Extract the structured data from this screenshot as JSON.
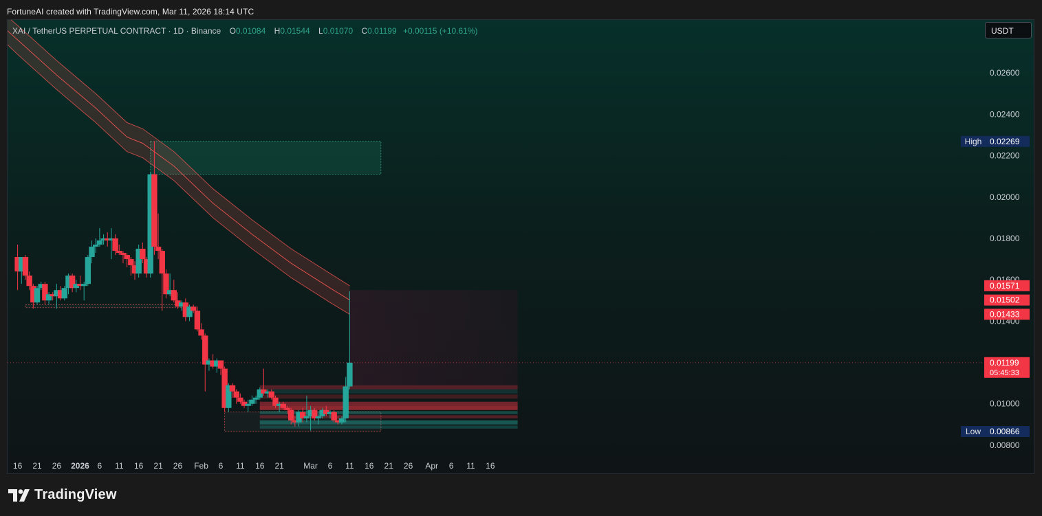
{
  "header": {
    "attribution": "FortuneAI created with TradingView.com, Mar 11, 2026 18:14 UTC"
  },
  "legend": {
    "symbol": "XAI / TetherUS PERPETUAL CONTRACT · 1D · Binance",
    "open_label": "O",
    "open": "0.01084",
    "high_label": "H",
    "high": "0.01544",
    "low_label": "L",
    "low": "0.01070",
    "close_label": "C",
    "close": "0.01199",
    "change": "+0.00115 (+10.61%)"
  },
  "currency_button": "USDT",
  "brand": {
    "name": "TradingView"
  },
  "colors": {
    "up": "#26a69a",
    "down": "#f23645",
    "band": "#ef5350",
    "zone": "#1f8f6f",
    "price_tag": "#f23645",
    "high_low_tag": "#132c5c"
  },
  "chart_data": {
    "type": "candlestick",
    "symbol": "XAI / TetherUS PERPETUAL CONTRACT",
    "interval": "1D",
    "exchange": "Binance",
    "ylim": [
      0.0073,
      0.0279
    ],
    "y_ticks": [
      "0.02600",
      "0.02400",
      "0.02200",
      "0.02000",
      "0.01800",
      "0.01600",
      "0.01400",
      "0.01000",
      "0.00800"
    ],
    "x_ticks": [
      {
        "label": "16",
        "date": "2025-12-16"
      },
      {
        "label": "21",
        "date": "2025-12-21"
      },
      {
        "label": "26",
        "date": "2025-12-26"
      },
      {
        "label": "2026",
        "date": "2026-01-01",
        "bold": true
      },
      {
        "label": "6",
        "date": "2026-01-06"
      },
      {
        "label": "11",
        "date": "2026-01-11"
      },
      {
        "label": "16",
        "date": "2026-01-16"
      },
      {
        "label": "21",
        "date": "2026-01-21"
      },
      {
        "label": "26",
        "date": "2026-01-26"
      },
      {
        "label": "Feb",
        "date": "2026-02-01"
      },
      {
        "label": "6",
        "date": "2026-02-06"
      },
      {
        "label": "11",
        "date": "2026-02-11"
      },
      {
        "label": "16",
        "date": "2026-02-16"
      },
      {
        "label": "21",
        "date": "2026-02-21"
      },
      {
        "label": "Mar",
        "date": "2026-03-01"
      },
      {
        "label": "6",
        "date": "2026-03-06"
      },
      {
        "label": "11",
        "date": "2026-03-11"
      },
      {
        "label": "16",
        "date": "2026-03-16"
      },
      {
        "label": "21",
        "date": "2026-03-21"
      },
      {
        "label": "26",
        "date": "2026-03-26"
      },
      {
        "label": "Apr",
        "date": "2026-04-01"
      },
      {
        "label": "6",
        "date": "2026-04-06"
      },
      {
        "label": "11",
        "date": "2026-04-11"
      },
      {
        "label": "16",
        "date": "2026-04-16"
      }
    ],
    "candles": [
      {
        "d": "2025-12-16",
        "o": 0.0171,
        "h": 0.0177,
        "l": 0.0155,
        "c": 0.0164
      },
      {
        "d": "2025-12-17",
        "o": 0.0164,
        "h": 0.017,
        "l": 0.0158,
        "c": 0.0171
      },
      {
        "d": "2025-12-18",
        "o": 0.0171,
        "h": 0.0172,
        "l": 0.016,
        "c": 0.0162
      },
      {
        "d": "2025-12-19",
        "o": 0.0162,
        "h": 0.0164,
        "l": 0.0155,
        "c": 0.0157
      },
      {
        "d": "2025-12-20",
        "o": 0.0157,
        "h": 0.0158,
        "l": 0.0146,
        "c": 0.0149
      },
      {
        "d": "2025-12-21",
        "o": 0.0149,
        "h": 0.0157,
        "l": 0.0148,
        "c": 0.0156
      },
      {
        "d": "2025-12-22",
        "o": 0.0156,
        "h": 0.0159,
        "l": 0.0155,
        "c": 0.0158
      },
      {
        "d": "2025-12-23",
        "o": 0.0158,
        "h": 0.0159,
        "l": 0.0148,
        "c": 0.015
      },
      {
        "d": "2025-12-24",
        "o": 0.015,
        "h": 0.0154,
        "l": 0.0148,
        "c": 0.0153
      },
      {
        "d": "2025-12-25",
        "o": 0.0153,
        "h": 0.0154,
        "l": 0.015,
        "c": 0.0152
      },
      {
        "d": "2025-12-26",
        "o": 0.0152,
        "h": 0.0158,
        "l": 0.0146,
        "c": 0.0155
      },
      {
        "d": "2025-12-27",
        "o": 0.0155,
        "h": 0.0157,
        "l": 0.015,
        "c": 0.0151
      },
      {
        "d": "2025-12-28",
        "o": 0.0151,
        "h": 0.0157,
        "l": 0.015,
        "c": 0.0156
      },
      {
        "d": "2025-12-29",
        "o": 0.0156,
        "h": 0.0163,
        "l": 0.0153,
        "c": 0.0162
      },
      {
        "d": "2025-12-30",
        "o": 0.0162,
        "h": 0.0163,
        "l": 0.0154,
        "c": 0.0156
      },
      {
        "d": "2025-12-31",
        "o": 0.0156,
        "h": 0.016,
        "l": 0.0154,
        "c": 0.0158
      },
      {
        "d": "2026-01-01",
        "o": 0.0158,
        "h": 0.0162,
        "l": 0.0155,
        "c": 0.0157
      },
      {
        "d": "2026-01-02",
        "o": 0.0157,
        "h": 0.0159,
        "l": 0.015,
        "c": 0.0158
      },
      {
        "d": "2026-01-03",
        "o": 0.0158,
        "h": 0.0172,
        "l": 0.0157,
        "c": 0.0171
      },
      {
        "d": "2026-01-04",
        "o": 0.0171,
        "h": 0.0179,
        "l": 0.0168,
        "c": 0.0176
      },
      {
        "d": "2026-01-05",
        "o": 0.0176,
        "h": 0.018,
        "l": 0.0173,
        "c": 0.0177
      },
      {
        "d": "2026-01-06",
        "o": 0.0177,
        "h": 0.0185,
        "l": 0.0176,
        "c": 0.0179
      },
      {
        "d": "2026-01-07",
        "o": 0.0179,
        "h": 0.0182,
        "l": 0.0177,
        "c": 0.018
      },
      {
        "d": "2026-01-08",
        "o": 0.018,
        "h": 0.0183,
        "l": 0.0176,
        "c": 0.0179
      },
      {
        "d": "2026-01-09",
        "o": 0.0179,
        "h": 0.0185,
        "l": 0.017,
        "c": 0.018
      },
      {
        "d": "2026-01-10",
        "o": 0.018,
        "h": 0.0182,
        "l": 0.0172,
        "c": 0.0174
      },
      {
        "d": "2026-01-11",
        "o": 0.0174,
        "h": 0.0177,
        "l": 0.0172,
        "c": 0.0173
      },
      {
        "d": "2026-01-12",
        "o": 0.0173,
        "h": 0.0174,
        "l": 0.0168,
        "c": 0.0172
      },
      {
        "d": "2026-01-13",
        "o": 0.0172,
        "h": 0.0173,
        "l": 0.0166,
        "c": 0.017
      },
      {
        "d": "2026-01-14",
        "o": 0.017,
        "h": 0.0171,
        "l": 0.0162,
        "c": 0.0167
      },
      {
        "d": "2026-01-15",
        "o": 0.0167,
        "h": 0.0169,
        "l": 0.016,
        "c": 0.0163
      },
      {
        "d": "2026-01-16",
        "o": 0.0163,
        "h": 0.0177,
        "l": 0.0161,
        "c": 0.0175
      },
      {
        "d": "2026-01-17",
        "o": 0.0175,
        "h": 0.0178,
        "l": 0.0168,
        "c": 0.017
      },
      {
        "d": "2026-01-18",
        "o": 0.017,
        "h": 0.0171,
        "l": 0.0161,
        "c": 0.0163
      },
      {
        "d": "2026-01-19",
        "o": 0.0163,
        "h": 0.0212,
        "l": 0.0161,
        "c": 0.0211
      },
      {
        "d": "2026-01-20",
        "o": 0.0211,
        "h": 0.0227,
        "l": 0.0172,
        "c": 0.0176
      },
      {
        "d": "2026-01-21",
        "o": 0.0176,
        "h": 0.0192,
        "l": 0.017,
        "c": 0.0174
      },
      {
        "d": "2026-01-22",
        "o": 0.0174,
        "h": 0.0175,
        "l": 0.0145,
        "c": 0.0163
      },
      {
        "d": "2026-01-23",
        "o": 0.0163,
        "h": 0.0165,
        "l": 0.0151,
        "c": 0.0153
      },
      {
        "d": "2026-01-24",
        "o": 0.0153,
        "h": 0.0163,
        "l": 0.0152,
        "c": 0.0155
      },
      {
        "d": "2026-01-25",
        "o": 0.0155,
        "h": 0.016,
        "l": 0.0149,
        "c": 0.015
      },
      {
        "d": "2026-01-26",
        "o": 0.015,
        "h": 0.0154,
        "l": 0.0146,
        "c": 0.0147
      },
      {
        "d": "2026-01-27",
        "o": 0.0147,
        "h": 0.015,
        "l": 0.0145,
        "c": 0.0149
      },
      {
        "d": "2026-01-28",
        "o": 0.0149,
        "h": 0.0151,
        "l": 0.014,
        "c": 0.0142
      },
      {
        "d": "2026-01-29",
        "o": 0.0142,
        "h": 0.0148,
        "l": 0.014,
        "c": 0.0147
      },
      {
        "d": "2026-01-30",
        "o": 0.0147,
        "h": 0.0148,
        "l": 0.0144,
        "c": 0.0145
      },
      {
        "d": "2026-01-31",
        "o": 0.0145,
        "h": 0.0147,
        "l": 0.0135,
        "c": 0.0136
      },
      {
        "d": "2026-02-01",
        "o": 0.0136,
        "h": 0.0139,
        "l": 0.0131,
        "c": 0.0133
      },
      {
        "d": "2026-02-02",
        "o": 0.0133,
        "h": 0.0134,
        "l": 0.0106,
        "c": 0.0119
      },
      {
        "d": "2026-02-03",
        "o": 0.0119,
        "h": 0.0122,
        "l": 0.0116,
        "c": 0.0121
      },
      {
        "d": "2026-02-04",
        "o": 0.0121,
        "h": 0.0124,
        "l": 0.0117,
        "c": 0.0118
      },
      {
        "d": "2026-02-05",
        "o": 0.0118,
        "h": 0.0122,
        "l": 0.0115,
        "c": 0.0121
      },
      {
        "d": "2026-02-06",
        "o": 0.0121,
        "h": 0.012,
        "l": 0.0114,
        "c": 0.0117
      },
      {
        "d": "2026-02-07",
        "o": 0.0117,
        "h": 0.0118,
        "l": 0.0096,
        "c": 0.0098
      },
      {
        "d": "2026-02-08",
        "o": 0.0098,
        "h": 0.011,
        "l": 0.0096,
        "c": 0.0109
      },
      {
        "d": "2026-02-09",
        "o": 0.0109,
        "h": 0.011,
        "l": 0.0103,
        "c": 0.0106
      },
      {
        "d": "2026-02-10",
        "o": 0.0106,
        "h": 0.0107,
        "l": 0.01,
        "c": 0.0103
      },
      {
        "d": "2026-02-11",
        "o": 0.0103,
        "h": 0.0105,
        "l": 0.01,
        "c": 0.0101
      },
      {
        "d": "2026-02-12",
        "o": 0.0101,
        "h": 0.0102,
        "l": 0.0098,
        "c": 0.0099
      },
      {
        "d": "2026-02-13",
        "o": 0.0099,
        "h": 0.0102,
        "l": 0.0096,
        "c": 0.01
      },
      {
        "d": "2026-02-14",
        "o": 0.01,
        "h": 0.0104,
        "l": 0.0099,
        "c": 0.0102
      },
      {
        "d": "2026-02-15",
        "o": 0.0102,
        "h": 0.0104,
        "l": 0.01,
        "c": 0.0103
      },
      {
        "d": "2026-02-16",
        "o": 0.0103,
        "h": 0.0108,
        "l": 0.0102,
        "c": 0.0107
      },
      {
        "d": "2026-02-17",
        "o": 0.0107,
        "h": 0.0117,
        "l": 0.0104,
        "c": 0.0105
      },
      {
        "d": "2026-02-18",
        "o": 0.0105,
        "h": 0.0107,
        "l": 0.0103,
        "c": 0.0106
      },
      {
        "d": "2026-02-19",
        "o": 0.0106,
        "h": 0.0107,
        "l": 0.0102,
        "c": 0.0103
      },
      {
        "d": "2026-02-20",
        "o": 0.0103,
        "h": 0.0104,
        "l": 0.0098,
        "c": 0.0099
      },
      {
        "d": "2026-02-21",
        "o": 0.0099,
        "h": 0.0101,
        "l": 0.0096,
        "c": 0.01
      },
      {
        "d": "2026-02-22",
        "o": 0.01,
        "h": 0.0101,
        "l": 0.0097,
        "c": 0.0098
      },
      {
        "d": "2026-02-23",
        "o": 0.0098,
        "h": 0.0099,
        "l": 0.0095,
        "c": 0.0097
      },
      {
        "d": "2026-02-24",
        "o": 0.0097,
        "h": 0.0098,
        "l": 0.009,
        "c": 0.0092
      },
      {
        "d": "2026-02-25",
        "o": 0.0092,
        "h": 0.0094,
        "l": 0.0089,
        "c": 0.0091
      },
      {
        "d": "2026-02-26",
        "o": 0.0091,
        "h": 0.0097,
        "l": 0.0089,
        "c": 0.0096
      },
      {
        "d": "2026-02-27",
        "o": 0.0096,
        "h": 0.0098,
        "l": 0.0091,
        "c": 0.0093
      },
      {
        "d": "2026-02-28",
        "o": 0.0093,
        "h": 0.0104,
        "l": 0.0091,
        "c": 0.0094
      },
      {
        "d": "2026-03-01",
        "o": 0.0094,
        "h": 0.0099,
        "l": 0.0087,
        "c": 0.0097
      },
      {
        "d": "2026-03-02",
        "o": 0.0097,
        "h": 0.0098,
        "l": 0.0092,
        "c": 0.0093
      },
      {
        "d": "2026-03-03",
        "o": 0.0093,
        "h": 0.0095,
        "l": 0.009,
        "c": 0.0094
      },
      {
        "d": "2026-03-04",
        "o": 0.0094,
        "h": 0.0098,
        "l": 0.0093,
        "c": 0.0097
      },
      {
        "d": "2026-03-05",
        "o": 0.0097,
        "h": 0.0099,
        "l": 0.0094,
        "c": 0.0095
      },
      {
        "d": "2026-03-06",
        "o": 0.0095,
        "h": 0.0097,
        "l": 0.0093,
        "c": 0.0096
      },
      {
        "d": "2026-03-07",
        "o": 0.0096,
        "h": 0.0097,
        "l": 0.0091,
        "c": 0.0092
      },
      {
        "d": "2026-03-08",
        "o": 0.0092,
        "h": 0.0094,
        "l": 0.009,
        "c": 0.0091
      },
      {
        "d": "2026-03-09",
        "o": 0.0091,
        "h": 0.0094,
        "l": 0.009,
        "c": 0.0093
      },
      {
        "d": "2026-03-10",
        "o": 0.0093,
        "h": 0.0113,
        "l": 0.0091,
        "c": 0.01084
      },
      {
        "d": "2026-03-11",
        "o": 0.01084,
        "h": 0.01544,
        "l": 0.0107,
        "c": 0.01199
      }
    ],
    "band": {
      "label_values": [
        "0.01571",
        "0.01502",
        "0.01433"
      ],
      "x": [
        "2025-12-06",
        "2025-12-16",
        "2025-12-26",
        "2026-01-05",
        "2026-01-13",
        "2026-01-17",
        "2026-01-25",
        "2026-02-04",
        "2026-02-14",
        "2026-02-24",
        "2026-03-06",
        "2026-03-11"
      ],
      "upper": [
        0.0299,
        0.0283,
        0.0266,
        0.025,
        0.0236,
        0.0233,
        0.0222,
        0.0204,
        0.0189,
        0.0175,
        0.0163,
        0.01571
      ],
      "mid": [
        0.0293,
        0.0276,
        0.0259,
        0.0243,
        0.0229,
        0.0226,
        0.0215,
        0.0197,
        0.0182,
        0.0168,
        0.0156,
        0.01502
      ],
      "lower": [
        0.0287,
        0.0269,
        0.0252,
        0.0236,
        0.0222,
        0.0219,
        0.0208,
        0.019,
        0.0175,
        0.0161,
        0.0149,
        0.01433
      ]
    },
    "zones": [
      {
        "kind": "supply",
        "x0": "2026-01-19",
        "x1": "2026-03-19",
        "y0": 0.0211,
        "y1": 0.02269
      },
      {
        "kind": "range",
        "x0": "2025-12-18",
        "x1": "2026-01-27",
        "y0": 0.01465,
        "y1": 0.0148
      },
      {
        "kind": "range",
        "x0": "2026-02-07",
        "x1": "2026-03-19",
        "y0": 0.00866,
        "y1": 0.0096
      },
      {
        "kind": "projection",
        "x0": "2026-03-11",
        "x1": "2026-04-23",
        "y0": 0.0109,
        "y1": 0.0155
      }
    ],
    "high": {
      "label": "High",
      "value": "0.02269"
    },
    "low": {
      "label": "Low",
      "value": "0.00866"
    },
    "last_price": {
      "value": "0.01199",
      "countdown": "05:45:33"
    }
  }
}
